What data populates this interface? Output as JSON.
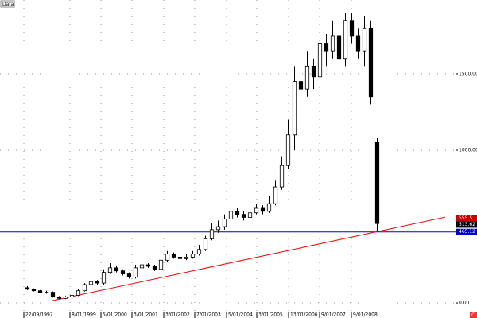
{
  "chart_data": {
    "type": "candlestick",
    "title": "Data",
    "corner_label": "C",
    "open": [
      100,
      90,
      80,
      70,
      70,
      40,
      30,
      40,
      50,
      80,
      120,
      140,
      130,
      200,
      230,
      210,
      190,
      170,
      230,
      250,
      240,
      220,
      280,
      320,
      300,
      290,
      300,
      320,
      350,
      420,
      480,
      500,
      550,
      600,
      580,
      560,
      590,
      620,
      600,
      650,
      760,
      900,
      1100,
      1450,
      1400,
      1550,
      1480,
      1700,
      1650,
      1750,
      1600,
      1850,
      1750,
      1650,
      1800,
      1050
    ],
    "high": [
      110,
      95,
      85,
      80,
      75,
      45,
      45,
      55,
      90,
      130,
      160,
      150,
      220,
      260,
      240,
      220,
      200,
      250,
      270,
      260,
      250,
      300,
      340,
      330,
      310,
      320,
      340,
      380,
      440,
      520,
      540,
      580,
      640,
      620,
      600,
      620,
      650,
      640,
      700,
      800,
      960,
      1200,
      1550,
      1520,
      1650,
      1600,
      1780,
      1760,
      1850,
      1800,
      1900,
      1900,
      1800,
      1880,
      1850,
      1080
    ],
    "low": [
      85,
      75,
      65,
      60,
      35,
      25,
      25,
      35,
      45,
      75,
      110,
      120,
      120,
      190,
      200,
      180,
      160,
      160,
      220,
      230,
      210,
      210,
      270,
      290,
      280,
      280,
      290,
      310,
      340,
      410,
      460,
      480,
      530,
      560,
      540,
      550,
      580,
      580,
      590,
      640,
      740,
      880,
      1000,
      1300,
      1350,
      1400,
      1450,
      1550,
      1600,
      1550,
      1550,
      1700,
      1600,
      1550,
      1300,
      465
    ],
    "close": [
      90,
      80,
      70,
      70,
      40,
      30,
      40,
      50,
      80,
      120,
      140,
      130,
      200,
      230,
      210,
      190,
      170,
      230,
      250,
      240,
      220,
      280,
      320,
      300,
      290,
      300,
      320,
      350,
      420,
      480,
      500,
      550,
      600,
      580,
      560,
      590,
      620,
      600,
      650,
      760,
      900,
      1100,
      1450,
      1400,
      1550,
      1480,
      1700,
      1650,
      1750,
      1600,
      1850,
      1750,
      1650,
      1800,
      1350,
      520
    ],
    "up_color": "#ffffff",
    "down_color": "#000000",
    "xlim": [
      -4.25,
      67.375
    ],
    "ylim": [
      -57,
      1984
    ],
    "xticks": [
      {
        "value": -0.5,
        "label": "22/09/1997"
      },
      {
        "value": 6.75,
        "label": "8/01/1999"
      },
      {
        "value": 11.625,
        "label": "5/01/2000"
      },
      {
        "value": 16.5,
        "label": "3/01/2001"
      },
      {
        "value": 21.5,
        "label": "3/01/2002"
      },
      {
        "value": 26.375,
        "label": "7/01/2003"
      },
      {
        "value": 31.375,
        "label": "5/01/2004"
      },
      {
        "value": 36.125,
        "label": "3/01/2005"
      },
      {
        "value": 41.125,
        "label": "13/01/2006"
      },
      {
        "value": 46,
        "label": "9/01/2007"
      },
      {
        "value": 51,
        "label": "9/01/2008"
      }
    ],
    "yticks": [
      {
        "value": 0,
        "label": "0.00"
      },
      {
        "value": 1000,
        "label": "1000.00"
      },
      {
        "value": 1500,
        "label": "1500.00"
      }
    ],
    "grid": true,
    "trendline": {
      "x": [
        4,
        65.75
      ],
      "values": [
        15,
        562
      ],
      "color": "#ff0000"
    },
    "hline": {
      "value": 465.12,
      "color": "#0000cc"
    },
    "price_labels": [
      {
        "value": 555.5,
        "label": "555.5",
        "color": "#cc0000"
      },
      {
        "value": 513.62,
        "label": "513.62",
        "color": "#000000"
      },
      {
        "value": 465.12,
        "label": "465.12",
        "color": "#0000cc"
      }
    ]
  }
}
